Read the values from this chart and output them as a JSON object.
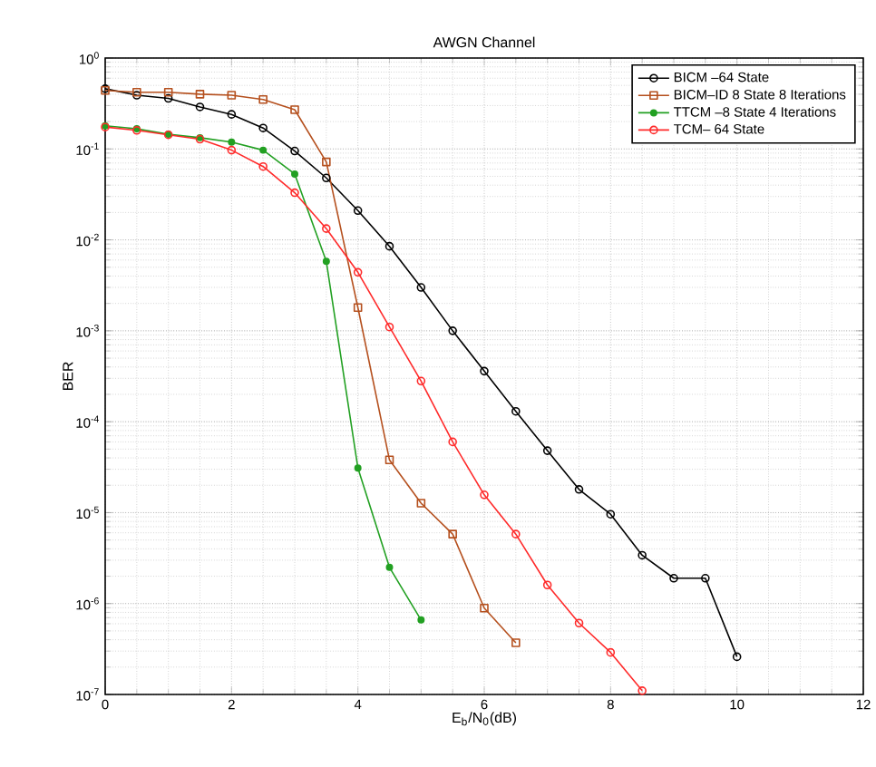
{
  "chart_data": {
    "type": "line",
    "title": "AWGN Channel",
    "xlabel": "E$_{b}$/N$_{0}$(dB)",
    "ylabel": "BER",
    "log": "y",
    "grid": true,
    "legend": "top right",
    "xlim": [
      0,
      12
    ],
    "xticks": [
      0,
      2,
      4,
      6,
      8,
      10,
      12
    ],
    "ylim": [
      1e-07,
      1
    ],
    "yticks": [
      {
        "value": 1e-07,
        "label": "10$^{-7}$"
      },
      {
        "value": 1e-06,
        "label": "10$^{-6}$"
      },
      {
        "value": 1e-05,
        "label": "10$^{-5}$"
      },
      {
        "value": 0.0001,
        "label": "10$^{-4}$"
      },
      {
        "value": 0.001,
        "label": "10$^{-3}$"
      },
      {
        "value": 0.01,
        "label": "10$^{-2}$"
      },
      {
        "value": 0.1,
        "label": "10$^{-1}$"
      },
      {
        "value": 1,
        "label": "10$^{0}$"
      }
    ],
    "series": [
      {
        "name": "BICM –64 State",
        "color": "#000000",
        "marker": "circle",
        "x": [
          0,
          0.5,
          1,
          1.5,
          2,
          2.5,
          3,
          3.5,
          4,
          4.5,
          5,
          5.5,
          6,
          6.5,
          7,
          7.5,
          8,
          8.5,
          9,
          9.5,
          10
        ],
        "values": [
          0.46,
          0.39,
          0.36,
          0.29,
          0.24,
          0.17,
          0.095,
          0.048,
          0.021,
          0.0085,
          0.003,
          0.001,
          0.00036,
          0.00013,
          4.8e-05,
          1.8e-05,
          9.6e-06,
          3.4e-06,
          1.9e-06,
          1.9e-06,
          2.6e-07
        ]
      },
      {
        "name": "BICM–ID 8 State 8 Iterations",
        "color": "#b5501e",
        "marker": "square",
        "x": [
          0,
          0.5,
          1,
          1.5,
          2,
          2.5,
          3,
          3.5,
          4,
          4.5,
          5,
          5.5,
          6,
          6.5
        ],
        "values": [
          0.44,
          0.42,
          0.42,
          0.4,
          0.39,
          0.35,
          0.27,
          0.072,
          0.0018,
          3.8e-05,
          1.27e-05,
          5.8e-06,
          8.9e-07,
          3.7e-07
        ]
      },
      {
        "name": "TTCM –8 State 4 Iterations",
        "color": "#22a022",
        "marker": "dot",
        "x": [
          0,
          0.5,
          1,
          1.5,
          2,
          2.5,
          3,
          3.5,
          4,
          4.5,
          5
        ],
        "values": [
          0.18,
          0.167,
          0.145,
          0.133,
          0.119,
          0.097,
          0.053,
          0.0058,
          3.1e-05,
          2.5e-06,
          6.6e-07
        ]
      },
      {
        "name": "TCM– 64 State",
        "color": "#ff2a2a",
        "marker": "circle",
        "x": [
          0,
          0.5,
          1,
          1.5,
          2,
          2.5,
          3,
          3.5,
          4,
          4.5,
          5,
          5.5,
          6,
          6.5,
          7,
          7.5,
          8,
          8.5
        ],
        "values": [
          0.174,
          0.16,
          0.143,
          0.128,
          0.097,
          0.064,
          0.033,
          0.0133,
          0.0044,
          0.0011,
          0.00028,
          6e-05,
          1.57e-05,
          5.8e-06,
          1.6e-06,
          6.1e-07,
          2.9e-07,
          1.1e-07
        ]
      }
    ]
  }
}
